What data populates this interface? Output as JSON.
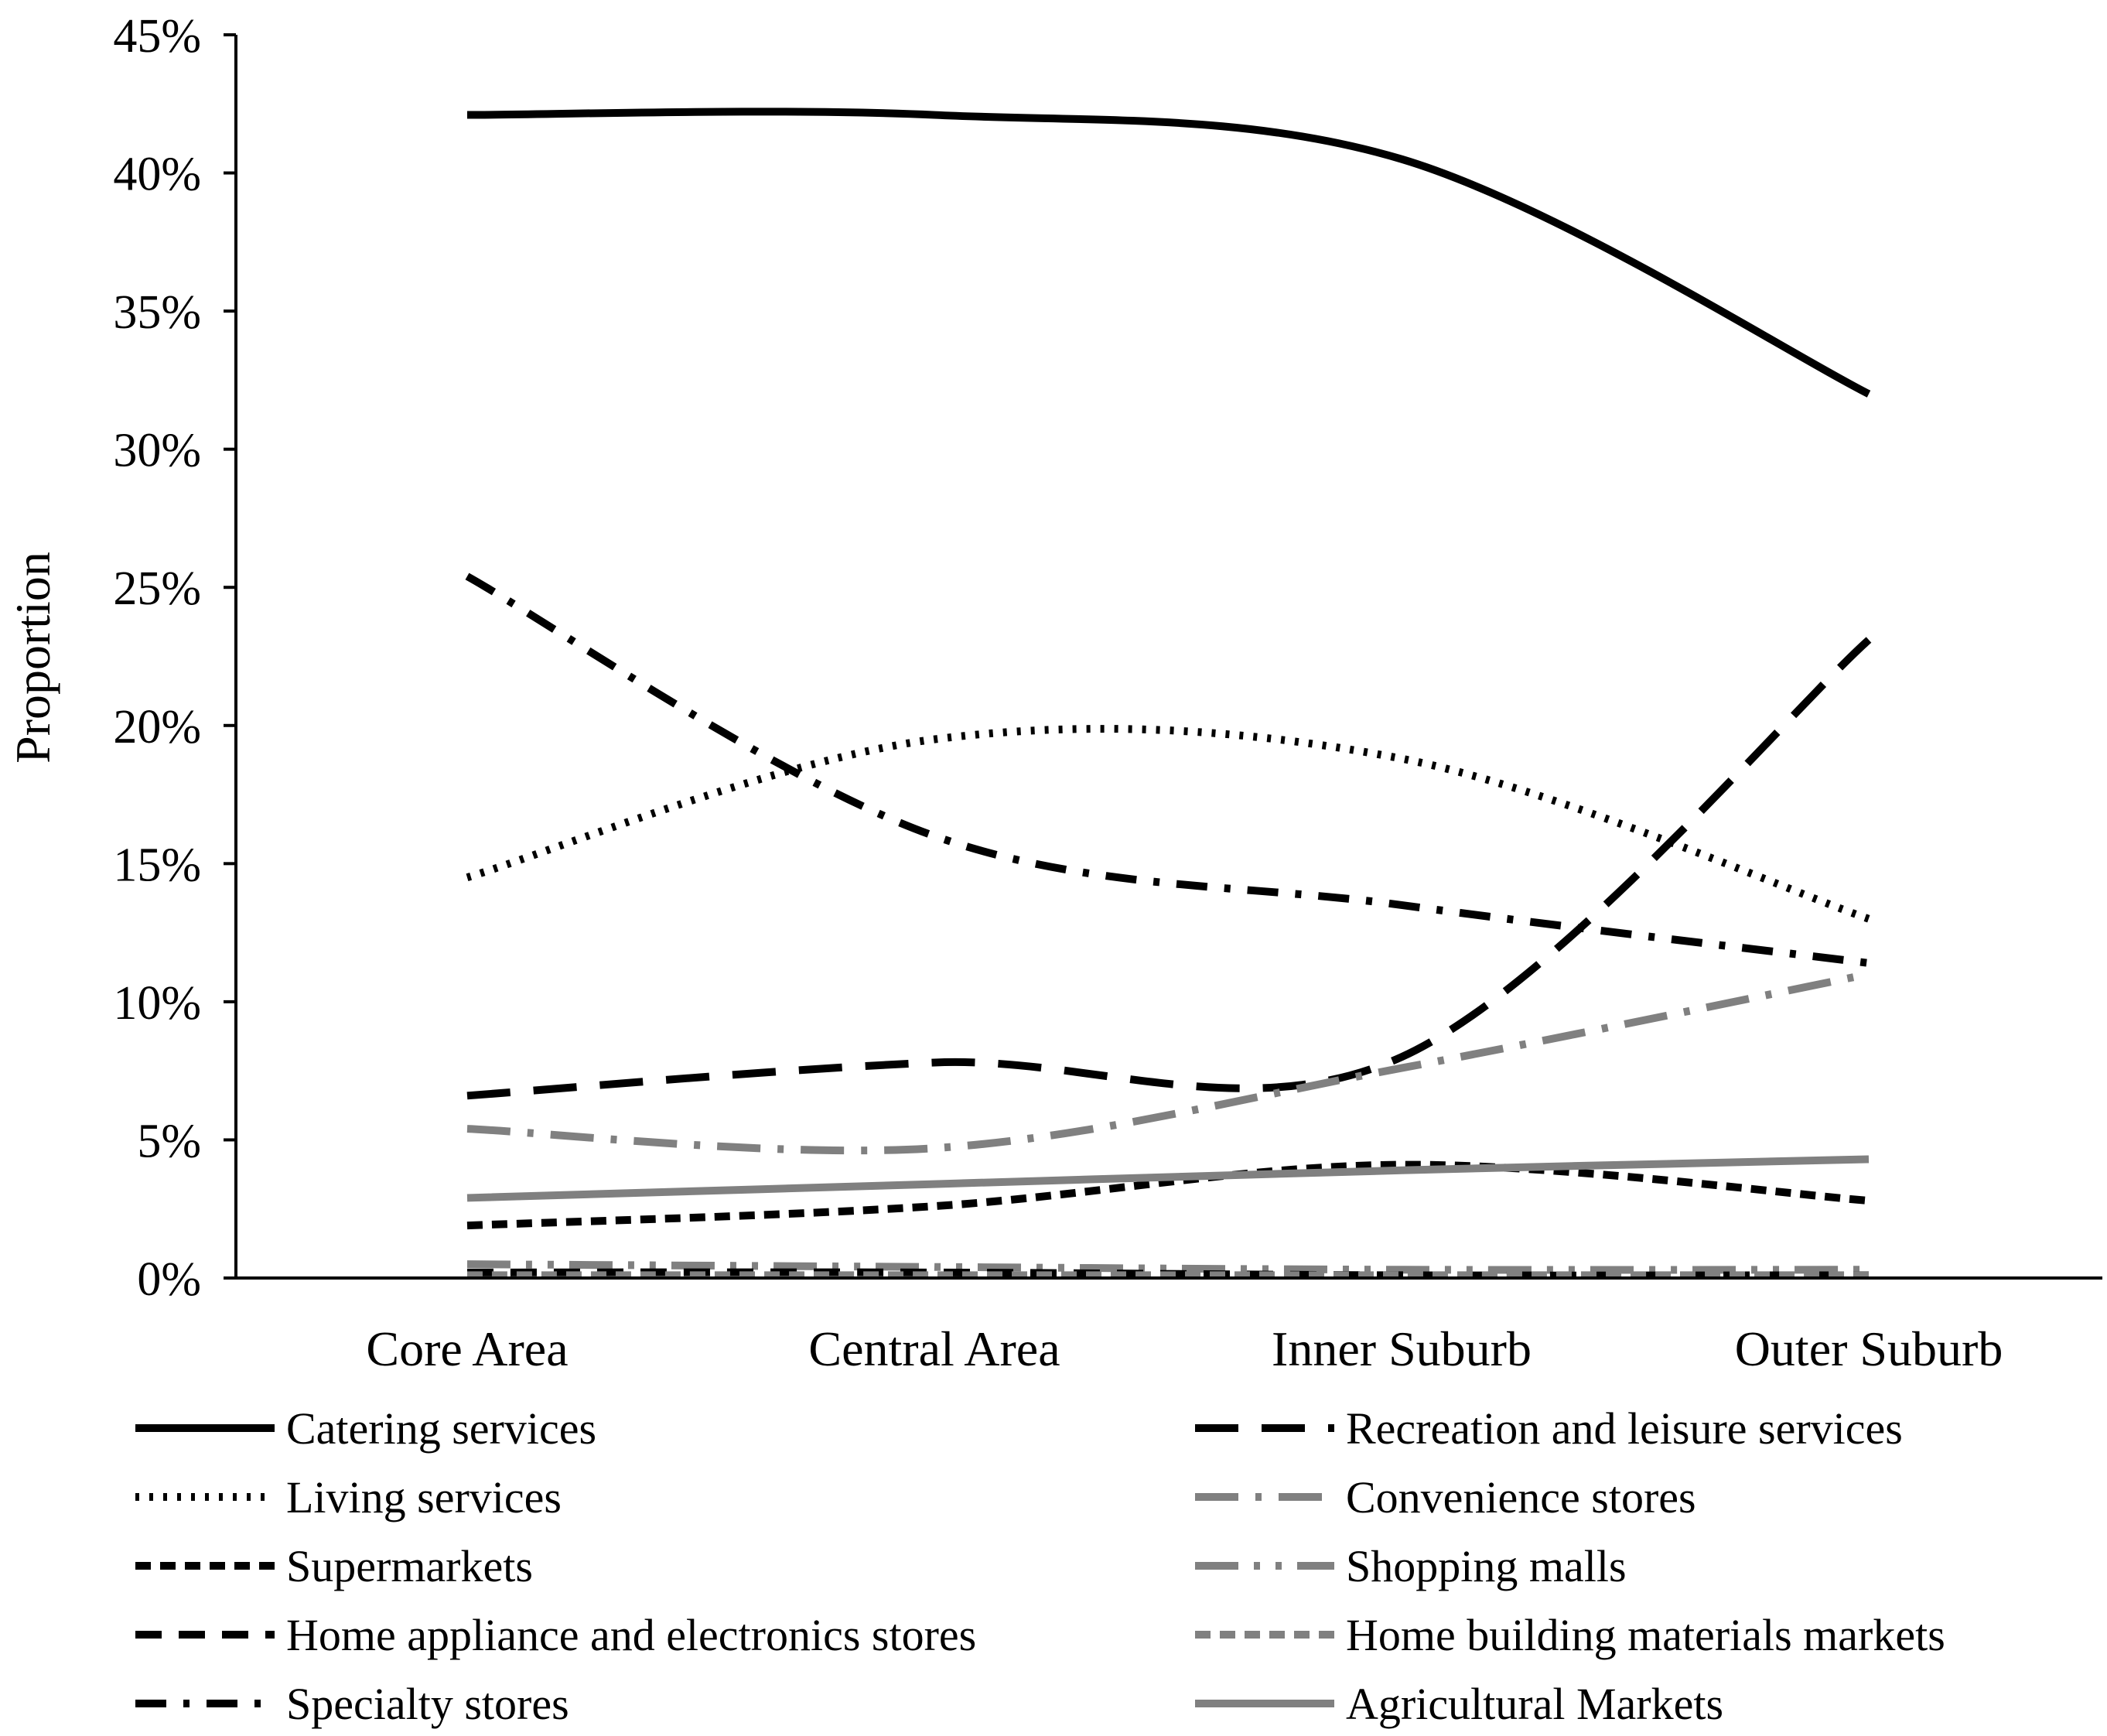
{
  "chart_data": {
    "type": "line",
    "title": "",
    "xlabel": "",
    "ylabel": "Proportion",
    "ylim": [
      0,
      45
    ],
    "yticks": [
      0,
      5,
      10,
      15,
      20,
      25,
      30,
      35,
      40,
      45
    ],
    "ytick_labels": [
      "0%",
      "5%",
      "10%",
      "15%",
      "20%",
      "25%",
      "30%",
      "35%",
      "40%",
      "45%"
    ],
    "categories": [
      "Core Area",
      "Central Area",
      "Inner Suburb",
      "Outer Suburb"
    ],
    "grid": false,
    "legend_position": "bottom",
    "series": [
      {
        "name": "Catering services",
        "values": [
          42.1,
          42.1,
          40.5,
          32.0
        ],
        "color": "#000000",
        "style": "solid"
      },
      {
        "name": "Recreation and leisure services",
        "values": [
          6.6,
          7.8,
          8.0,
          23.1
        ],
        "color": "#000000",
        "style": "long-dash"
      },
      {
        "name": "Living services",
        "values": [
          14.5,
          19.5,
          18.8,
          13.0
        ],
        "color": "#000000",
        "style": "dotted"
      },
      {
        "name": "Convenience stores",
        "values": [
          5.4,
          4.7,
          7.6,
          11.0
        ],
        "color": "#808080",
        "style": "long-dash-dot"
      },
      {
        "name": "Supermarkets",
        "values": [
          1.9,
          2.6,
          4.1,
          2.8
        ],
        "color": "#000000",
        "style": "short-dash"
      },
      {
        "name": "Shopping malls",
        "values": [
          0.5,
          0.4,
          0.3,
          0.3
        ],
        "color": "#808080",
        "style": "long-dash-dot-dot"
      },
      {
        "name": "Home appliance and electronics stores",
        "values": [
          0.2,
          0.2,
          0.1,
          0.1
        ],
        "color": "#000000",
        "style": "dash"
      },
      {
        "name": "Home building materials markets",
        "values": [
          0.1,
          0.1,
          0.1,
          0.1
        ],
        "color": "#808080",
        "style": "short-dash"
      },
      {
        "name": "Specialty stores",
        "values": [
          25.4,
          16.0,
          13.5,
          11.4
        ],
        "color": "#000000",
        "style": "dash-dot"
      },
      {
        "name": "Agricultural Markets",
        "values": [
          2.9,
          3.4,
          3.9,
          4.3
        ],
        "color": "#808080",
        "style": "solid"
      }
    ]
  }
}
